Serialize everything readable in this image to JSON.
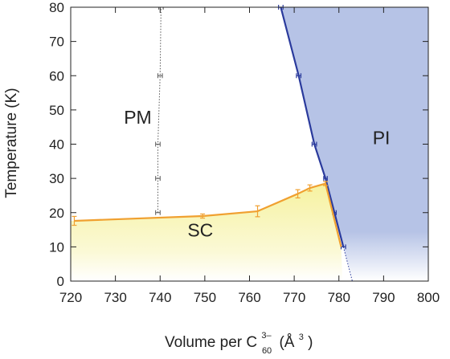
{
  "chart_data": {
    "type": "line",
    "xlabel_parts": {
      "prefix": "Volume per C",
      "sup": "3–",
      "sub": "60",
      "unit_open": "(Å",
      "unit_sup": "3",
      "unit_close": ")"
    },
    "ylabel": "Temperature (K)",
    "xlim": [
      720,
      800
    ],
    "ylim": [
      0,
      80
    ],
    "xticks": [
      720,
      730,
      740,
      750,
      760,
      770,
      780,
      790,
      800
    ],
    "yticks": [
      0,
      10,
      20,
      30,
      40,
      50,
      60,
      70,
      80
    ],
    "grid": false,
    "regions": [
      {
        "label": "PM",
        "x": 735,
        "y": 46.0
      },
      {
        "label": "PI",
        "x": 789.5,
        "y": 40.0
      },
      {
        "label": "SC",
        "x": 749,
        "y": 13.0
      }
    ],
    "series": [
      {
        "role": "SC-boundary",
        "color": "#f0a030",
        "fill": "#f7f2a8",
        "x": [
          720.8,
          749.5,
          761.8,
          770.8,
          773.5,
          777.0,
          780.5
        ],
        "y": [
          17.6,
          19.0,
          20.4,
          25.5,
          27.2,
          28.5,
          10.0
        ],
        "yerr": [
          1.3,
          0.6,
          1.6,
          1.2,
          0.9,
          0.6,
          0.0
        ]
      },
      {
        "role": "PI-boundary",
        "color": "#2a3a9c",
        "fill": "#b6c3e6",
        "x": [
          767.0,
          771.0,
          774.5,
          777.0,
          779.0,
          781.0
        ],
        "y": [
          80.0,
          60.0,
          40.0,
          30.0,
          20.0,
          10.0
        ],
        "xerr": [
          0.5,
          0.5,
          0.5,
          0.4,
          0.4,
          0.5
        ]
      },
      {
        "role": "PM-crossover",
        "color": "#555555",
        "x": [
          739.5,
          739.5,
          739.5,
          740.0,
          740.2,
          740.5
        ],
        "y": [
          20.0,
          30.0,
          40.0,
          60.0,
          80.0,
          80.0
        ],
        "xerr": [
          0.5,
          0.5,
          0.5,
          0.5,
          0.5,
          0.5
        ]
      }
    ]
  }
}
